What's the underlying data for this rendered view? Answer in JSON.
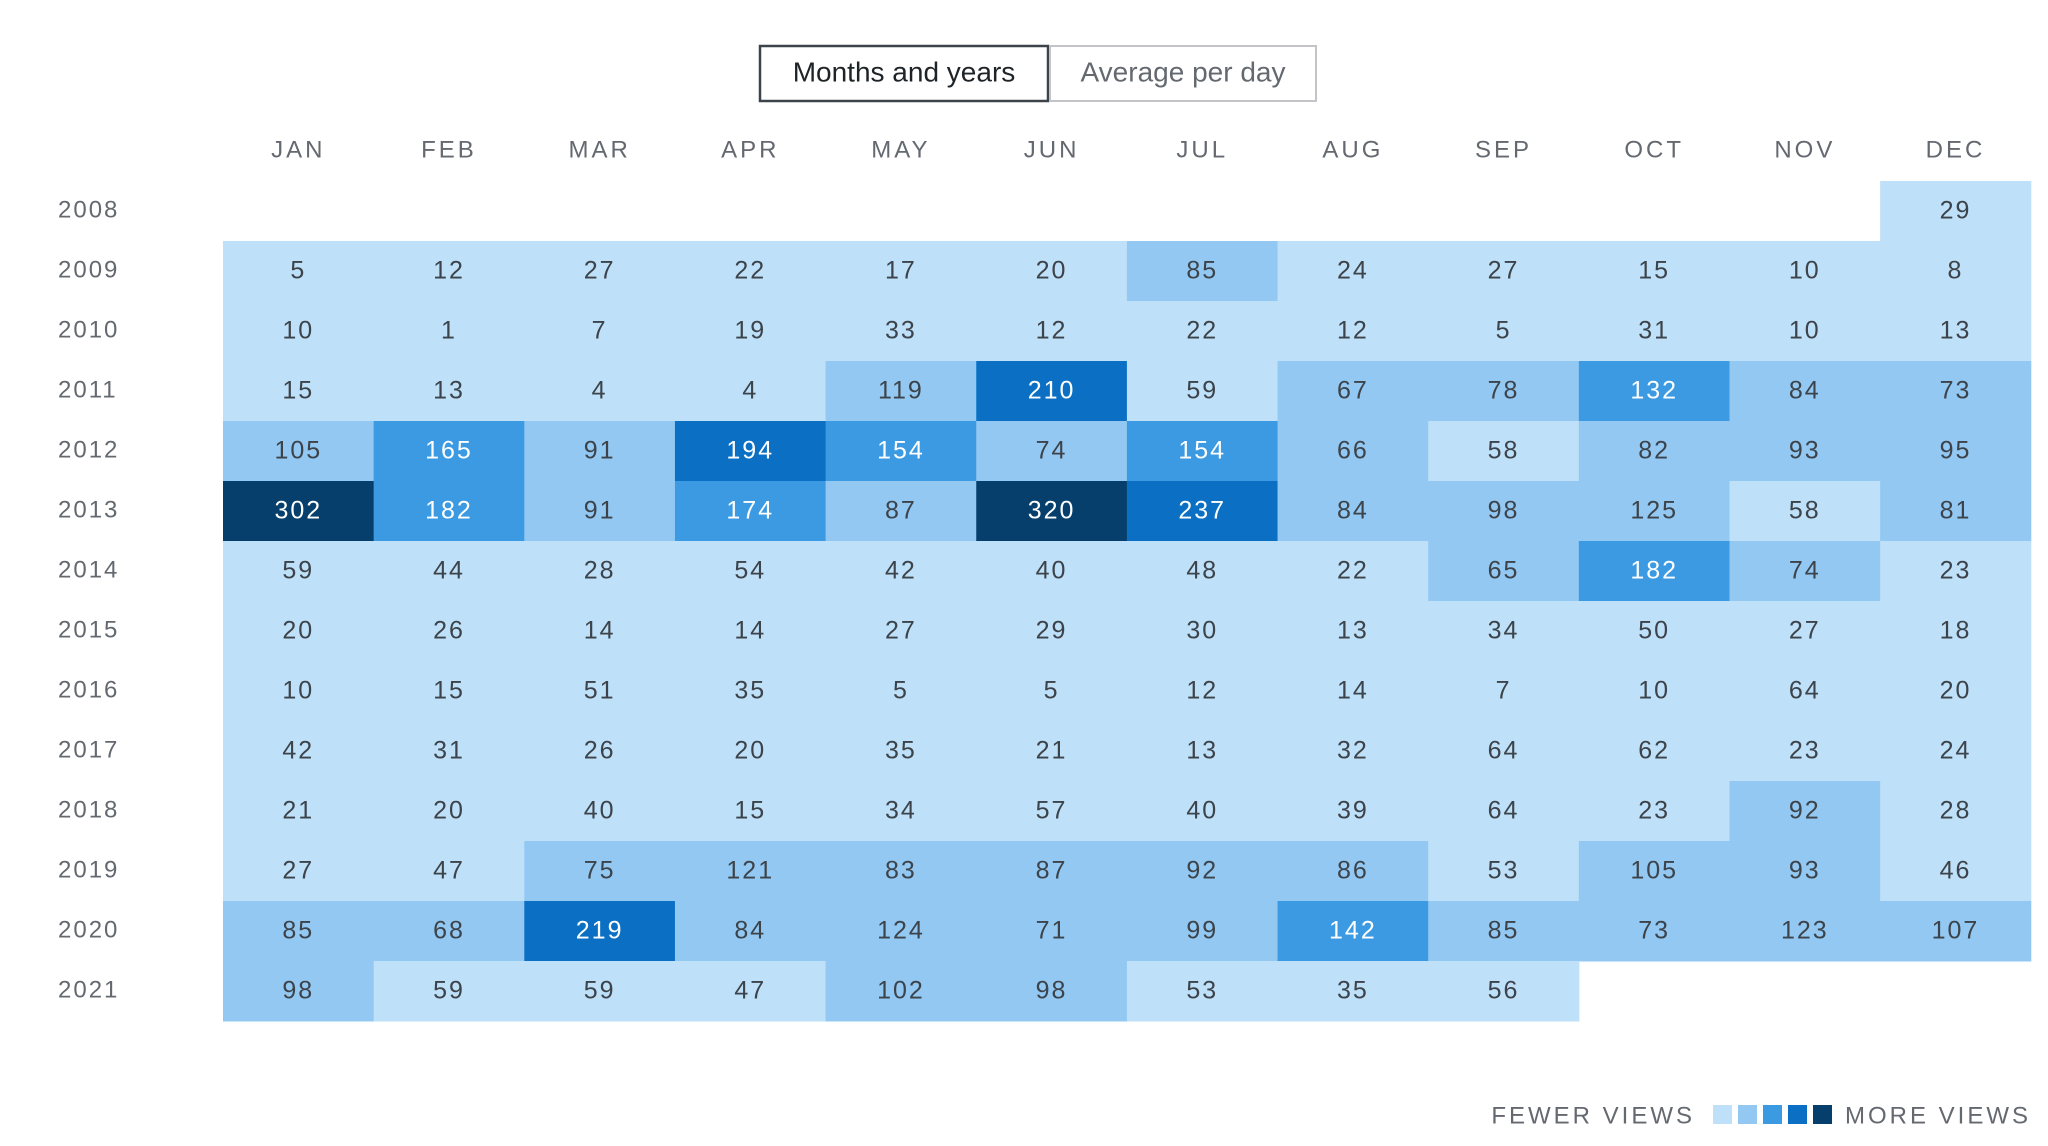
{
  "chart_data": {
    "type": "heatmap",
    "tabs": [
      {
        "label": "Months and years",
        "selected": true
      },
      {
        "label": "Average per day",
        "selected": false
      }
    ],
    "categories": [
      "JAN",
      "FEB",
      "MAR",
      "APR",
      "MAY",
      "JUN",
      "JUL",
      "AUG",
      "SEP",
      "OCT",
      "NOV",
      "DEC"
    ],
    "rows": [
      "2008",
      "2009",
      "2010",
      "2011",
      "2012",
      "2013",
      "2014",
      "2015",
      "2016",
      "2017",
      "2018",
      "2019",
      "2020",
      "2021"
    ],
    "values": [
      [
        null,
        null,
        null,
        null,
        null,
        null,
        null,
        null,
        null,
        null,
        null,
        29
      ],
      [
        5,
        12,
        27,
        22,
        17,
        20,
        85,
        24,
        27,
        15,
        10,
        8
      ],
      [
        10,
        1,
        7,
        19,
        33,
        12,
        22,
        12,
        5,
        31,
        10,
        13
      ],
      [
        15,
        13,
        4,
        4,
        119,
        210,
        59,
        67,
        78,
        132,
        84,
        73
      ],
      [
        105,
        165,
        91,
        194,
        154,
        74,
        154,
        66,
        58,
        82,
        93,
        95
      ],
      [
        302,
        182,
        91,
        174,
        87,
        320,
        237,
        84,
        98,
        125,
        58,
        81
      ],
      [
        59,
        44,
        28,
        54,
        42,
        40,
        48,
        22,
        65,
        182,
        74,
        23
      ],
      [
        20,
        26,
        14,
        14,
        27,
        29,
        30,
        13,
        34,
        50,
        27,
        18
      ],
      [
        10,
        15,
        51,
        35,
        5,
        5,
        12,
        14,
        7,
        10,
        64,
        20
      ],
      [
        42,
        31,
        26,
        20,
        35,
        21,
        13,
        32,
        64,
        62,
        23,
        24
      ],
      [
        21,
        20,
        40,
        15,
        34,
        57,
        40,
        39,
        64,
        23,
        92,
        28
      ],
      [
        27,
        47,
        75,
        121,
        83,
        87,
        92,
        86,
        53,
        105,
        93,
        46
      ],
      [
        85,
        68,
        219,
        84,
        124,
        71,
        99,
        142,
        85,
        73,
        123,
        107
      ],
      [
        98,
        59,
        59,
        47,
        102,
        98,
        53,
        35,
        56,
        null,
        null,
        null
      ]
    ],
    "colors": [
      "#bee0f8",
      "#92c8f2",
      "#3b9ae2",
      "#0b70c4",
      "#063f6c"
    ],
    "legend": {
      "low": "FEWER VIEWS",
      "high": "MORE VIEWS"
    }
  }
}
